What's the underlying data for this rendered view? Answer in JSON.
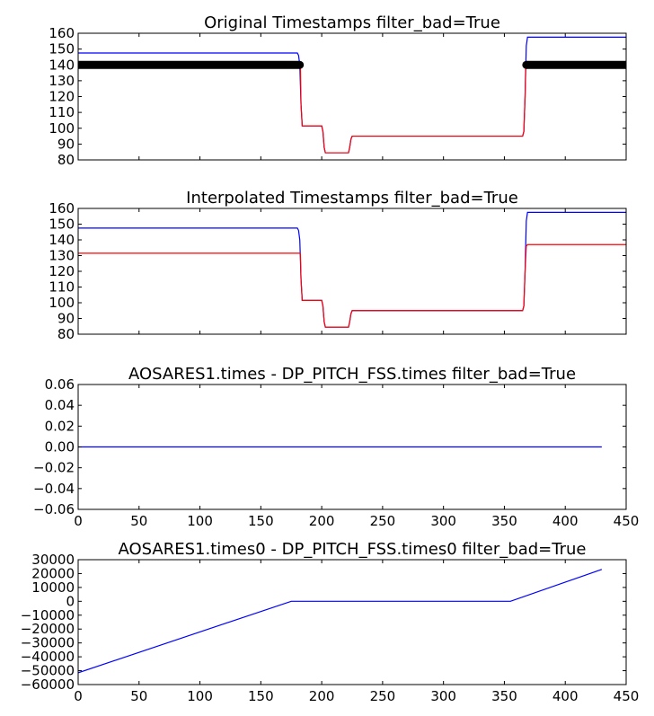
{
  "chart_data": [
    {
      "type": "line",
      "title": "Original Timestamps filter_bad=True",
      "xlim": [
        0,
        450
      ],
      "ylim": [
        80,
        160
      ],
      "yticks": [
        80,
        90,
        100,
        110,
        120,
        130,
        140,
        150,
        160
      ],
      "ytick_labels": [
        "80",
        "90",
        "100",
        "110",
        "120",
        "130",
        "140",
        "150",
        "160"
      ],
      "xtick_labels_shown": false,
      "series": [
        {
          "color": "#0000ff",
          "x": [
            0,
            180,
            181,
            182,
            183,
            184,
            200,
            201,
            202,
            203,
            222,
            223,
            224,
            225,
            365,
            366,
            367,
            368,
            369,
            450
          ],
          "y": [
            147.5,
            147.5,
            146,
            140,
            115,
            101.5,
            101.5,
            98,
            88,
            84.5,
            84.5,
            88,
            93,
            95,
            95,
            98,
            120,
            152,
            157.5,
            157.5
          ]
        },
        {
          "color": "#ff0000",
          "x": [
            182.5,
            183,
            184,
            200,
            201,
            202,
            203,
            222,
            223,
            224,
            225,
            365,
            366,
            367,
            367.5
          ],
          "y": [
            140,
            115,
            101.5,
            101.5,
            98,
            88,
            84.5,
            84.5,
            88,
            93,
            95,
            95,
            98,
            120,
            140
          ]
        },
        {
          "color": "#000000",
          "style": "thick-with-dots",
          "segments": [
            {
              "x": [
                0,
                182
              ],
              "y": [
                140,
                140
              ]
            },
            {
              "x": [
                368,
                450
              ],
              "y": [
                140,
                140
              ]
            }
          ]
        }
      ]
    },
    {
      "type": "line",
      "title": "Interpolated Timestamps filter_bad=True",
      "xlim": [
        0,
        450
      ],
      "ylim": [
        80,
        160
      ],
      "yticks": [
        80,
        90,
        100,
        110,
        120,
        130,
        140,
        150,
        160
      ],
      "ytick_labels": [
        "80",
        "90",
        "100",
        "110",
        "120",
        "130",
        "140",
        "150",
        "160"
      ],
      "xtick_labels_shown": false,
      "series": [
        {
          "color": "#0000ff",
          "x": [
            0,
            180,
            181,
            182,
            183,
            184,
            200,
            201,
            202,
            203,
            222,
            223,
            224,
            225,
            365,
            366,
            367,
            368,
            369,
            450
          ],
          "y": [
            147.5,
            147.5,
            146,
            140,
            115,
            101.5,
            101.5,
            98,
            88,
            84.5,
            84.5,
            88,
            93,
            95,
            95,
            98,
            120,
            152,
            157.5,
            157.5
          ]
        },
        {
          "color": "#ff0000",
          "x": [
            0,
            182,
            182.5,
            183,
            184,
            200,
            201,
            202,
            203,
            222,
            223,
            224,
            225,
            365,
            366,
            367,
            368,
            369,
            450
          ],
          "y": [
            131.5,
            131.5,
            131,
            115,
            101.5,
            101.5,
            98,
            88,
            84.5,
            84.5,
            88,
            93,
            95,
            95,
            98,
            120,
            136,
            137,
            137
          ]
        }
      ]
    },
    {
      "type": "line",
      "title": "AOSARES1.times - DP_PITCH_FSS.times filter_bad=True",
      "xlim": [
        0,
        450
      ],
      "ylim": [
        -0.06,
        0.06
      ],
      "xticks": [
        0,
        50,
        100,
        150,
        200,
        250,
        300,
        350,
        400,
        450
      ],
      "xtick_labels": [
        "0",
        "50",
        "100",
        "150",
        "200",
        "250",
        "300",
        "350",
        "400",
        "450"
      ],
      "yticks": [
        -0.06,
        -0.04,
        -0.02,
        0,
        0.02,
        0.04,
        0.06
      ],
      "ytick_labels": [
        "−0.06",
        "−0.04",
        "−0.02",
        "0.00",
        "0.02",
        "0.04",
        "0.06"
      ],
      "series": [
        {
          "color": "#0000ff",
          "x": [
            0,
            430
          ],
          "y": [
            0,
            0
          ]
        }
      ]
    },
    {
      "type": "line",
      "title": "AOSARES1.times0 - DP_PITCH_FSS.times0 filter_bad=True",
      "xlim": [
        0,
        450
      ],
      "ylim": [
        -60000,
        30000
      ],
      "xticks": [
        0,
        50,
        100,
        150,
        200,
        250,
        300,
        350,
        400,
        450
      ],
      "xtick_labels": [
        "0",
        "50",
        "100",
        "150",
        "200",
        "250",
        "300",
        "350",
        "400",
        "450"
      ],
      "yticks": [
        -60000,
        -50000,
        -40000,
        -30000,
        -20000,
        -10000,
        0,
        10000,
        20000,
        30000
      ],
      "ytick_labels": [
        "−60000",
        "−50000",
        "−40000",
        "−30000",
        "−20000",
        "−10000",
        "0",
        "10000",
        "20000",
        "30000"
      ],
      "series": [
        {
          "color": "#0000ff",
          "x": [
            0,
            175,
            355,
            430
          ],
          "y": [
            -51500,
            0,
            0,
            23000
          ]
        }
      ]
    }
  ]
}
